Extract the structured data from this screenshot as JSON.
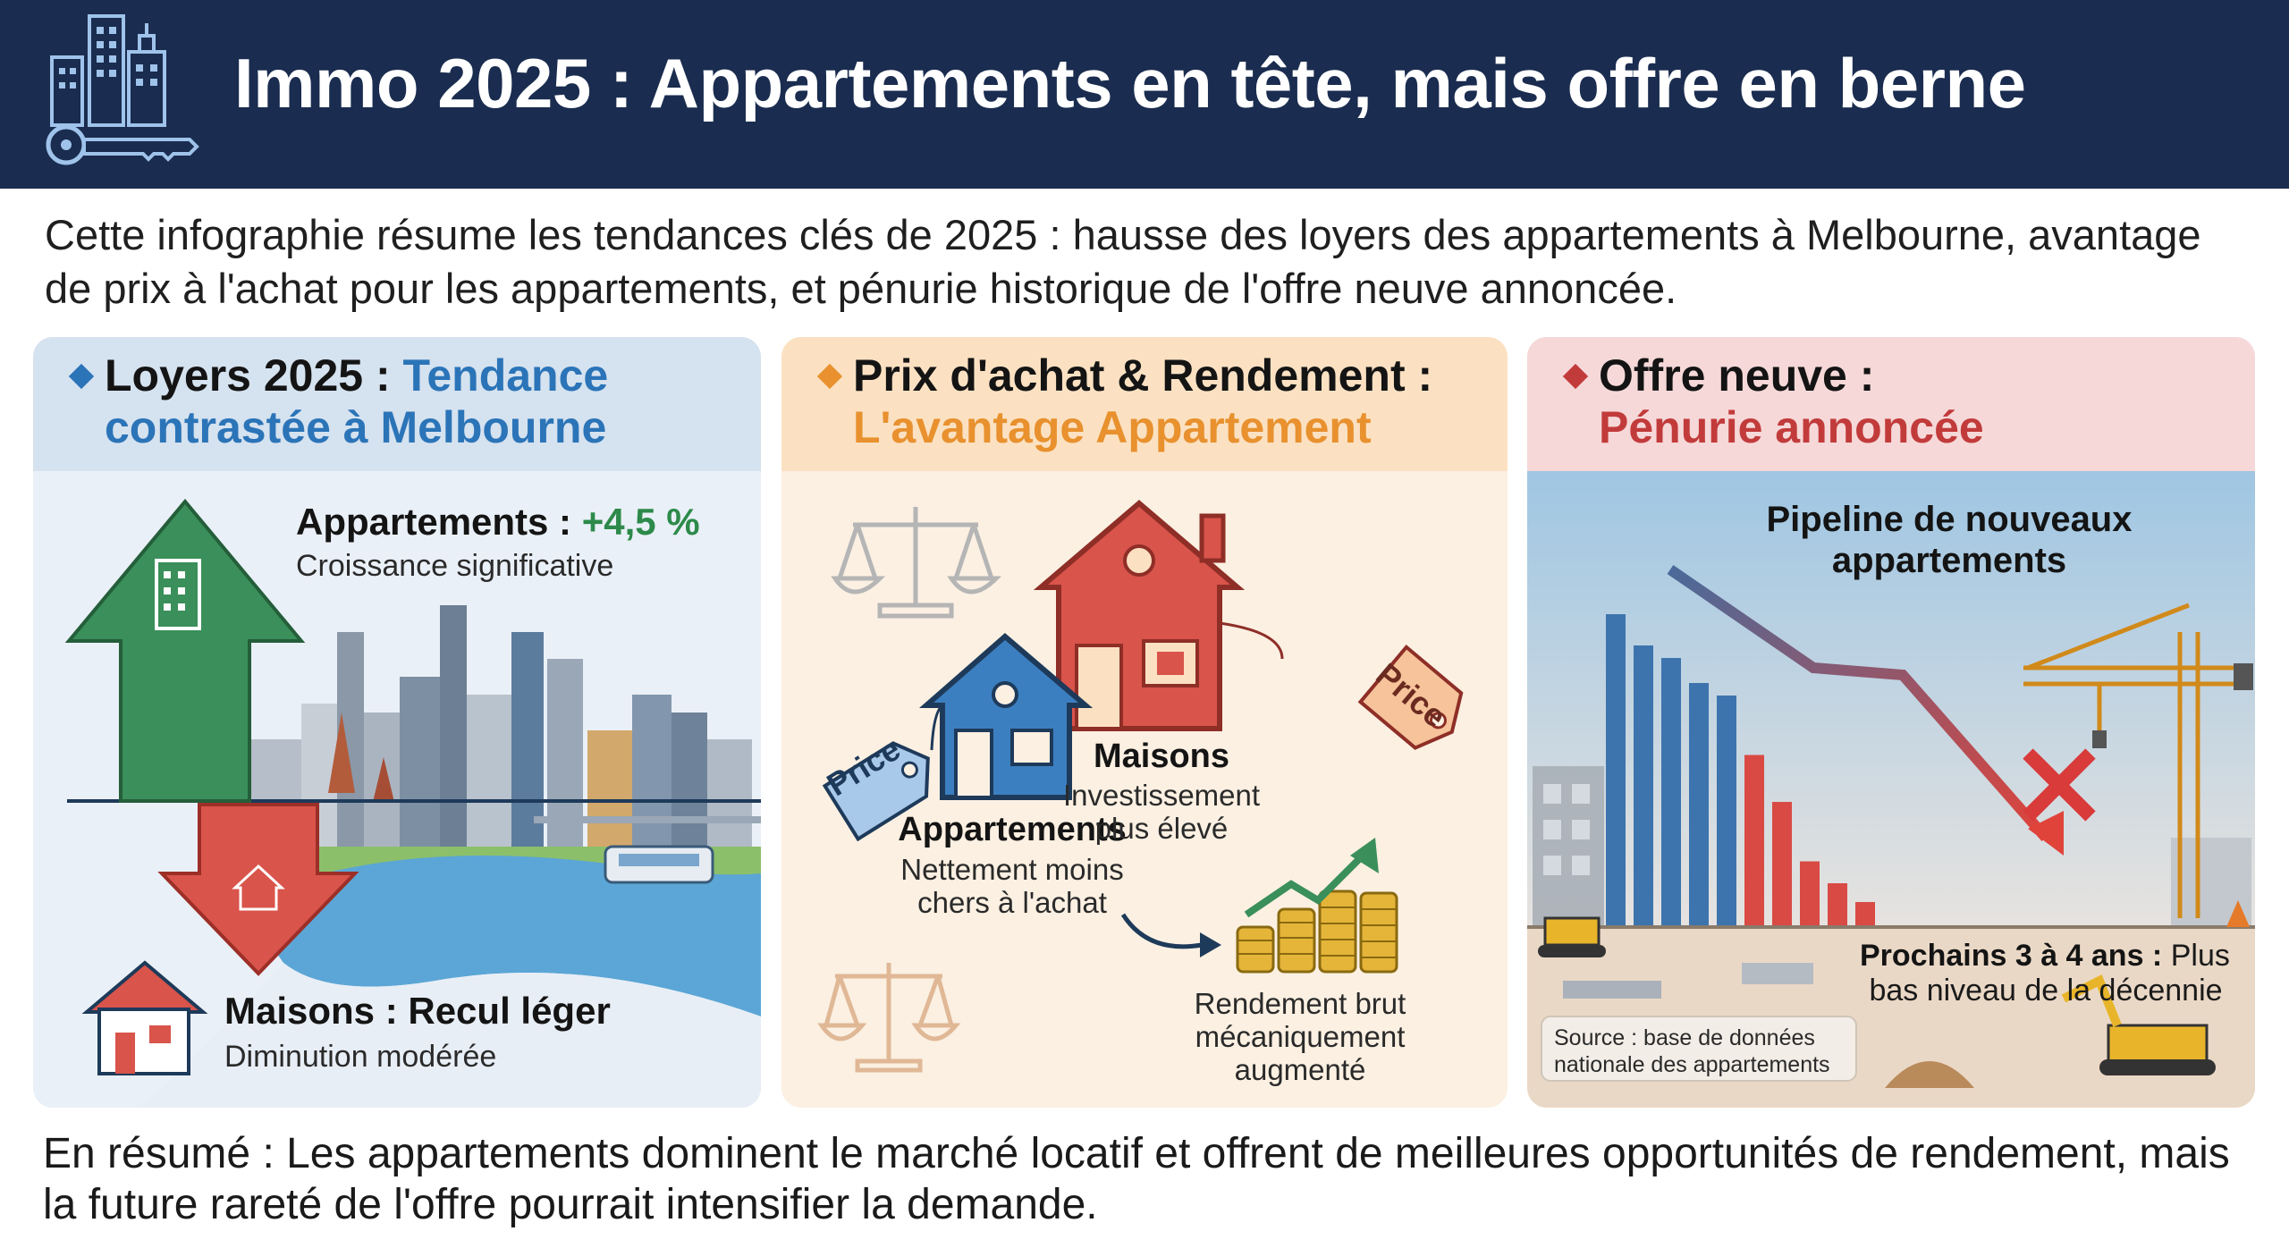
{
  "header": {
    "title": "Immo 2025 : Appartements en tête, mais offre en berne",
    "icon": "city-key-icon"
  },
  "intro": "Cette infographie résume les tendances clés de 2025 : hausse des loyers des appartements à Melbourne, avantage de prix à l'achat pour les appartements, et pénurie historique de l'offre neuve annoncée.",
  "panels": {
    "rents": {
      "title_line1": "Loyers 2025 : ",
      "title_accent1": "Tendance",
      "title_line2": "contrastée à Melbourne",
      "apartments_label": "Appartements : ",
      "apartments_value": "+4,5 %",
      "apartments_sub": "Croissance significative",
      "houses_label": "Maisons : Recul léger",
      "houses_sub": "Diminution modérée",
      "accent_color": "#2b74b8",
      "up_color": "#3a8f5a",
      "down_color": "#d9544b"
    },
    "price": {
      "title_line1": "Prix d'achat & Rendement :",
      "title_line2": "L'avantage Appartement",
      "tag_text": "Price",
      "apartments_label": "Appartements",
      "apartments_sub1": "Nettement moins",
      "apartments_sub2": "chers à l'achat",
      "houses_label": "Maisons",
      "houses_sub1": "Investissement",
      "houses_sub2": "plus élevé",
      "yield_line1": "Rendement brut",
      "yield_line2": "mécaniquement",
      "yield_line3": "augmenté",
      "accent_color": "#e8912e"
    },
    "supply": {
      "title_line1": "Offre neuve :",
      "title_line2": "Pénurie annoncée",
      "pipeline_line1": "Pipeline de nouveaux",
      "pipeline_line2": "appartements",
      "outlook_bold": "Prochains 3 à 4 ans :",
      "outlook_rest1": " Plus",
      "outlook_rest2": "bas niveau de la décennie",
      "source_line1": "Source : base de données",
      "source_line2": "nationale des appartements",
      "accent_color": "#c23b3b",
      "bar_values": [
        10,
        9,
        8.6,
        7.8,
        7.4,
        5.5,
        4,
        2.1,
        1.4,
        0.8
      ]
    }
  },
  "footer": "En résumé : Les appartements dominent le marché locatif et offrent de meilleures opportunités de rendement, mais la future rareté de l'offre pourrait intensifier la demande."
}
